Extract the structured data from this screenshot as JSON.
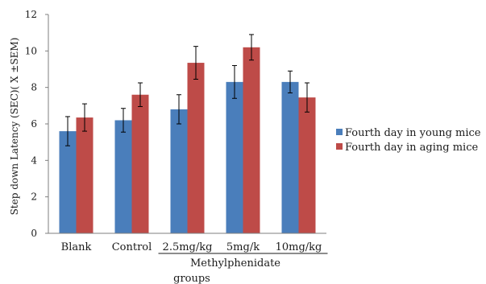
{
  "chart_data": {
    "type": "bar",
    "categories": [
      "Blank",
      "Control",
      "2.5mg/kg",
      "5mg/k",
      "10mg/kg"
    ],
    "series": [
      {
        "name": "Fourth day in young mice",
        "color": "#4a7ebb",
        "values": [
          5.6,
          6.2,
          6.8,
          8.3,
          8.3
        ],
        "errors": [
          0.8,
          0.65,
          0.8,
          0.9,
          0.6
        ]
      },
      {
        "name": "Fourth day in aging mice",
        "color": "#be4b48",
        "values": [
          6.35,
          7.6,
          9.35,
          10.2,
          7.45
        ],
        "errors": [
          0.75,
          0.65,
          0.9,
          0.7,
          0.8
        ]
      }
    ],
    "group_label": "Methylphenidate",
    "xlabel": "groups",
    "ylabel": "Step down Latency (SEC)( X ±SEM)",
    "ylim": [
      0,
      12
    ],
    "yticks": [
      0,
      2,
      4,
      6,
      8,
      10,
      12
    ],
    "grid": false,
    "legend_position": "right"
  }
}
